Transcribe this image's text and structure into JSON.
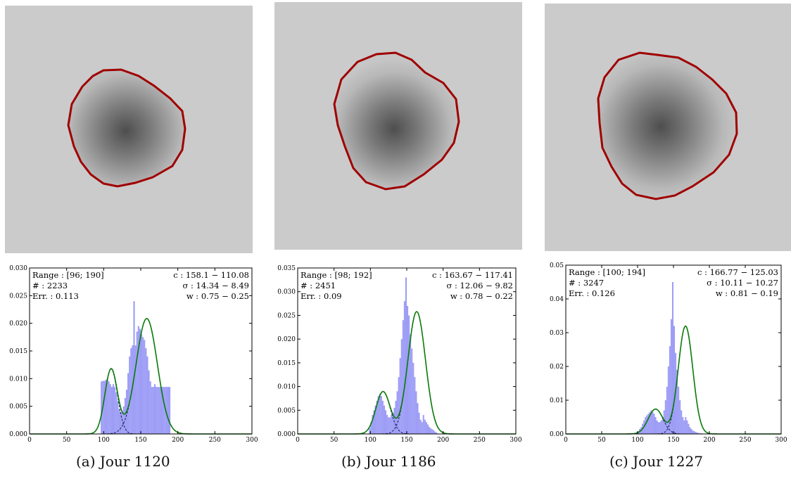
{
  "colors": {
    "tile_background": "#cbcbcb",
    "contour": "#a00000",
    "histogram": "#8c8cf5",
    "fit_curve": "#0a7a0a",
    "component_curves": "#1a1a5a"
  },
  "chart_data": [
    {
      "type": "bar",
      "caption": "(a) Jour 1120",
      "info_left": [
        "Range : [96; 190]",
        "# : 2233",
        "Err. : 0.113"
      ],
      "info_right": [
        "c : 158.1 − 110.08",
        "σ : 14.34 − 8.49",
        "w : 0.75 − 0.25"
      ],
      "xlim": [
        0,
        300
      ],
      "ylim": [
        0,
        0.03
      ],
      "xticks": [
        "0",
        "50",
        "100",
        "150",
        "200",
        "250",
        "300"
      ],
      "yticks": [
        "0.000",
        "0.005",
        "0.010",
        "0.015",
        "0.020",
        "0.025",
        "0.030"
      ],
      "ytick_values": [
        0,
        0.005,
        0.01,
        0.015,
        0.02,
        0.025,
        0.03
      ],
      "histogram": {
        "bin_start": 96,
        "bin_width": 2,
        "values": [
          0.0095,
          0.0096,
          0.0096,
          0.0098,
          0.01,
          0.0095,
          0.009,
          0.0085,
          0.009,
          0.0085,
          0.0075,
          0.006,
          0.0045,
          0.004,
          0.004,
          0.005,
          0.0065,
          0.008,
          0.011,
          0.014,
          0.0155,
          0.016,
          0.024,
          0.016,
          0.0185,
          0.0195,
          0.019,
          0.018,
          0.0175,
          0.017,
          0.0155,
          0.014,
          0.0115,
          0.0095,
          0.0085,
          0.0085,
          0.009,
          0.0085,
          0.0085,
          0.0085,
          0.0085,
          0.0085,
          0.0085,
          0.0085,
          0.0085,
          0.0085,
          0.0085
        ]
      },
      "fit": {
        "centers": [
          158.1,
          110.08
        ],
        "sigmas": [
          14.34,
          8.49
        ],
        "weights": [
          0.75,
          0.25
        ]
      }
    },
    {
      "type": "bar",
      "caption": "(b) Jour 1186",
      "info_left": [
        "Range : [98; 192]",
        "# : 2451",
        "Err. : 0.09"
      ],
      "info_right": [
        "c : 163.67 − 117.41",
        "σ : 12.06 − 9.82",
        "w : 0.78 − 0.22"
      ],
      "xlim": [
        0,
        300
      ],
      "ylim": [
        0,
        0.035
      ],
      "xticks": [
        "0",
        "50",
        "100",
        "150",
        "200",
        "250",
        "300"
      ],
      "yticks": [
        "0.000",
        "0.005",
        "0.010",
        "0.015",
        "0.020",
        "0.025",
        "0.030",
        "0.035"
      ],
      "ytick_values": [
        0,
        0.005,
        0.01,
        0.015,
        0.02,
        0.025,
        0.03,
        0.035
      ],
      "histogram": {
        "bin_start": 98,
        "bin_width": 2,
        "values": [
          0.0012,
          0.0025,
          0.004,
          0.005,
          0.006,
          0.007,
          0.008,
          0.0085,
          0.008,
          0.007,
          0.006,
          0.005,
          0.004,
          0.0035,
          0.0035,
          0.004,
          0.0045,
          0.0055,
          0.007,
          0.009,
          0.012,
          0.016,
          0.02,
          0.024,
          0.028,
          0.033,
          0.027,
          0.025,
          0.021,
          0.018,
          0.015,
          0.012,
          0.009,
          0.0065,
          0.0045,
          0.003,
          0.0025,
          0.004,
          0.003,
          0.0025,
          0.002,
          0.0015,
          0.0012,
          0.001,
          0.0008,
          0.0005,
          0.0003
        ]
      },
      "fit": {
        "centers": [
          163.67,
          117.41
        ],
        "sigmas": [
          12.06,
          9.82
        ],
        "weights": [
          0.78,
          0.22
        ]
      }
    },
    {
      "type": "bar",
      "caption": "(c) Jour 1227",
      "info_left": [
        "Range : [100; 194]",
        "# : 3247",
        "Err. : 0.126"
      ],
      "info_right": [
        "c : 166.77 − 125.03",
        "σ : 10.11 − 10.27",
        "w : 0.81 − 0.19"
      ],
      "xlim": [
        0,
        300
      ],
      "ylim": [
        0,
        0.05
      ],
      "xticks": [
        "0",
        "50",
        "100",
        "150",
        "200",
        "250",
        "300"
      ],
      "yticks": [
        "0.00",
        "0.01",
        "0.02",
        "0.03",
        "0.04",
        "0.05"
      ],
      "ytick_values": [
        0,
        0.01,
        0.02,
        0.03,
        0.04,
        0.05
      ],
      "histogram": {
        "bin_start": 100,
        "bin_width": 2,
        "values": [
          0.0008,
          0.0015,
          0.002,
          0.003,
          0.004,
          0.005,
          0.0055,
          0.006,
          0.0065,
          0.007,
          0.0065,
          0.006,
          0.005,
          0.004,
          0.0035,
          0.0035,
          0.004,
          0.005,
          0.007,
          0.01,
          0.014,
          0.02,
          0.026,
          0.034,
          0.045,
          0.032,
          0.024,
          0.019,
          0.014,
          0.01,
          0.007,
          0.005,
          0.004,
          0.005,
          0.004,
          0.003,
          0.002,
          0.0015,
          0.001,
          0.0008,
          0.0006,
          0.0004,
          0.0003,
          0.0002,
          0.0002,
          0.0001,
          0.0001
        ]
      },
      "fit": {
        "centers": [
          166.77,
          125.03
        ],
        "sigmas": [
          10.11,
          10.27
        ],
        "weights": [
          0.81,
          0.19
        ]
      }
    }
  ]
}
